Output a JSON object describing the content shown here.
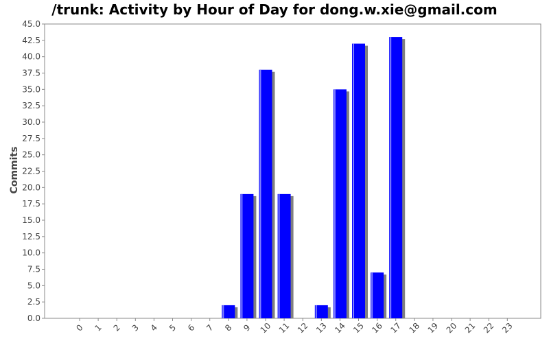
{
  "chart_data": {
    "type": "bar",
    "title": "/trunk: Activity by Hour of Day for dong.w.xie@gmail.com",
    "xlabel": "",
    "ylabel": "Commits",
    "categories": [
      "0",
      "1",
      "2",
      "3",
      "4",
      "5",
      "6",
      "7",
      "8",
      "9",
      "10",
      "11",
      "12",
      "13",
      "14",
      "15",
      "16",
      "17",
      "18",
      "19",
      "20",
      "21",
      "22",
      "23"
    ],
    "values": [
      0,
      0,
      0,
      0,
      0,
      0,
      0,
      0,
      2,
      19,
      38,
      19,
      0,
      2,
      35,
      42,
      7,
      43,
      0,
      0,
      0,
      0,
      0,
      0
    ],
    "ylim": [
      0,
      45
    ],
    "ytick_step": 2.5,
    "yticks": [
      "0.0",
      "2.5",
      "5.0",
      "7.5",
      "10.0",
      "12.5",
      "15.0",
      "17.5",
      "20.0",
      "22.5",
      "25.0",
      "27.5",
      "30.0",
      "32.5",
      "35.0",
      "37.5",
      "40.0",
      "42.5",
      "45.0"
    ],
    "grid": false,
    "colors": {
      "bar": "#0000ff",
      "bar_highlight": "#8080ff",
      "bar_shadow": "#808080",
      "axis": "#888888",
      "tick_text": "#444444"
    }
  }
}
